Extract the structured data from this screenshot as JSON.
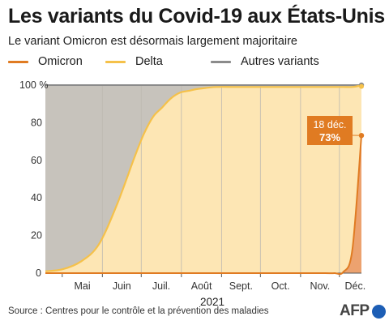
{
  "title": "Les variants du Covid-19 aux États-Unis",
  "subtitle": "Le variant Omicron est désormais largement majoritaire",
  "source": "Source : Centres pour le contrôle et la prévention des maladies",
  "logo_text": "AFP",
  "colors": {
    "omicron": "#e07b22",
    "omicron_fill": "#eca26f",
    "delta": "#f5c14a",
    "delta_fill": "#fde6b4",
    "autres": "#8b8b8b",
    "autres_fill": "#c7c3bc",
    "annotation_bg": "#e07b22"
  },
  "chart_data": {
    "type": "area",
    "title": "Les variants du Covid-19 aux États-Unis",
    "xlabel": "2021",
    "ylabel": "",
    "ylim": [
      0,
      100
    ],
    "y_ticks": [
      "0",
      "20",
      "40",
      "60",
      "80",
      "100 %"
    ],
    "y_tick_values": [
      0,
      20,
      40,
      60,
      80,
      100
    ],
    "x_ticks": [
      "Mai",
      "Juin",
      "Juil.",
      "Août",
      "Sept.",
      "Oct.",
      "Nov.",
      "Déc."
    ],
    "x_tick_dates": [
      "2021-05-01",
      "2021-06-01",
      "2021-07-01",
      "2021-08-01",
      "2021-09-01",
      "2021-10-01",
      "2021-11-01",
      "2021-12-01"
    ],
    "xlim": [
      "2021-04-18",
      "2021-12-18"
    ],
    "stacked": true,
    "legend_position": "top",
    "grid": "vertical",
    "x": [
      "2021-04-18",
      "2021-05-01",
      "2021-05-15",
      "2021-05-29",
      "2021-06-12",
      "2021-06-26",
      "2021-07-03",
      "2021-07-10",
      "2021-07-17",
      "2021-07-24",
      "2021-07-31",
      "2021-08-07",
      "2021-08-14",
      "2021-08-28",
      "2021-09-11",
      "2021-09-25",
      "2021-10-09",
      "2021-10-23",
      "2021-11-06",
      "2021-11-20",
      "2021-11-27",
      "2021-12-04",
      "2021-12-11",
      "2021-12-18"
    ],
    "series": [
      {
        "name": "Omicron",
        "values": [
          0,
          0,
          0,
          0,
          0,
          0,
          0,
          0,
          0,
          0,
          0,
          0,
          0,
          0,
          0,
          0,
          0,
          0,
          0,
          0,
          0,
          0.6,
          12.6,
          73.2
        ]
      },
      {
        "name": "Delta",
        "values": [
          1,
          2,
          6,
          15,
          36,
          62,
          74,
          83,
          88,
          93,
          96,
          97,
          98,
          99,
          99,
          99,
          99,
          99,
          99,
          99,
          99,
          98.4,
          86.4,
          26.6
        ]
      },
      {
        "name": "Autres variants",
        "values": [
          99,
          98,
          94,
          85,
          64,
          38,
          26,
          17,
          12,
          7,
          4,
          3,
          2,
          1,
          1,
          1,
          1,
          1,
          1,
          1,
          1,
          1,
          1,
          0.2
        ]
      }
    ],
    "annotation": {
      "date": "18 déc.",
      "value": "73%",
      "x": "2021-12-18",
      "y": 73
    }
  }
}
